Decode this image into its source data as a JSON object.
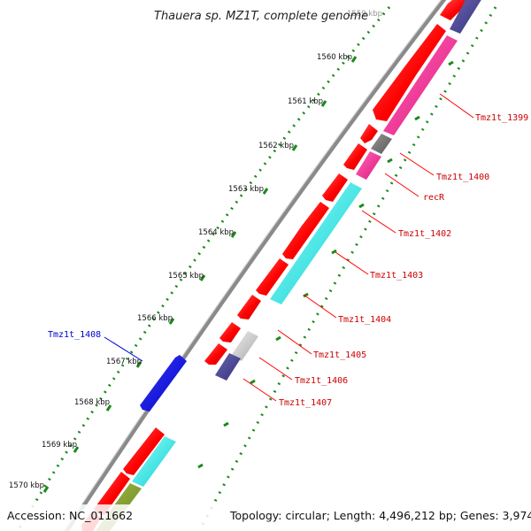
{
  "title": "Thauera sp. MZ1T, complete genome",
  "footer": {
    "accession": "Accession: NC_011662",
    "summary": "Topology: circular; Length: 4,496,212 bp; Genes: 3,974"
  },
  "scale_labels": [
    {
      "id": "kbp-1559",
      "text": "1559 kbp"
    },
    {
      "id": "kbp-1560",
      "text": "1560 kbp"
    },
    {
      "id": "kbp-1561",
      "text": "1561 kbp"
    },
    {
      "id": "kbp-1562",
      "text": "1562 kbp"
    },
    {
      "id": "kbp-1563",
      "text": "1563 kbp"
    },
    {
      "id": "kbp-1564",
      "text": "1564 kbp"
    },
    {
      "id": "kbp-1565",
      "text": "1565 kbp"
    },
    {
      "id": "kbp-1566",
      "text": "1566 kbp"
    },
    {
      "id": "kbp-1567",
      "text": "1567 kbp"
    },
    {
      "id": "kbp-1568",
      "text": "1568 kbp"
    },
    {
      "id": "kbp-1569",
      "text": "1569 kbp"
    },
    {
      "id": "kbp-1570",
      "text": "1570 kbp"
    }
  ],
  "gene_labels": [
    {
      "id": "tmz1t-1399",
      "text": "Tmz1t_1399"
    },
    {
      "id": "tmz1t-1400",
      "text": "Tmz1t_1400"
    },
    {
      "id": "recr",
      "text": "recR"
    },
    {
      "id": "tmz1t-1402",
      "text": "Tmz1t_1402"
    },
    {
      "id": "tmz1t-1403",
      "text": "Tmz1t_1403"
    },
    {
      "id": "tmz1t-1404",
      "text": "Tmz1t_1404"
    },
    {
      "id": "tmz1t-1405",
      "text": "Tmz1t_1405"
    },
    {
      "id": "tmz1t-1406",
      "text": "Tmz1t_1406"
    },
    {
      "id": "tmz1t-1407",
      "text": "Tmz1t_1407"
    },
    {
      "id": "tmz1t-1408",
      "text": "Tmz1t_1408"
    }
  ],
  "colors": {
    "backbone": "#888888",
    "cds_forward": "#ff0000",
    "reverse_strand": "#0000ee",
    "magenta": "#ff1493",
    "cyan": "#00e5e5",
    "navy": "#443f8a",
    "grey": "#777777",
    "silver": "#c8c8c8",
    "olive": "#7f9a2a",
    "scale_dots": "#1a8a1a",
    "label_red": "#cc0000",
    "label_blue": "#0000cc"
  }
}
